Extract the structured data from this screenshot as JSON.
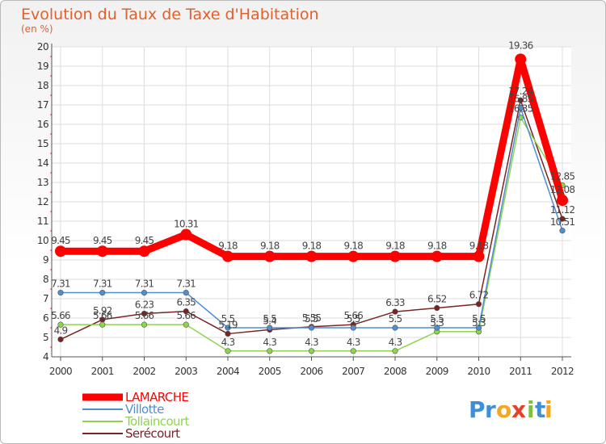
{
  "chart_data": {
    "type": "line",
    "title": "Evolution du Taux de Taxe d'Habitation",
    "subtitle": "(en %)",
    "x": [
      "2000",
      "2001",
      "2002",
      "2003",
      "2004",
      "2005",
      "2006",
      "2007",
      "2008",
      "2009",
      "2010",
      "2011",
      "2012"
    ],
    "yticks": [
      "4",
      "5",
      "6",
      "7",
      "8",
      "9",
      "10",
      "11",
      "12",
      "13",
      "14",
      "15",
      "16",
      "17",
      "18",
      "19",
      "20"
    ],
    "ylim": [
      4,
      20
    ],
    "grid": true,
    "legend_position": "bottom-left",
    "series": [
      {
        "name": "LAMARCHE",
        "color": "#ff0000",
        "values": [
          9.45,
          9.45,
          9.45,
          10.31,
          9.18,
          9.18,
          9.18,
          9.18,
          9.18,
          9.18,
          9.18,
          19.36,
          12.08
        ],
        "labels": [
          "9.45",
          "9.45",
          "9.45",
          "10.31",
          "9.18",
          "9.18",
          "9.18",
          "9.18",
          "9.18",
          "9.18",
          "9.18",
          "19.36",
          "12.08"
        ]
      },
      {
        "name": "Villotte",
        "color": "#4f8ecf",
        "values": [
          7.31,
          7.31,
          7.31,
          7.31,
          5.5,
          5.5,
          5.5,
          5.5,
          5.5,
          5.5,
          5.5,
          16.85,
          10.51
        ],
        "labels": [
          "7.31",
          "7.31",
          "7.31",
          "7.31",
          "5.5",
          "5.5",
          "5.5",
          "5.5",
          "5.5",
          "5.5",
          "5.5",
          "16.85",
          "10.51"
        ]
      },
      {
        "name": "Tollaincourt",
        "color": "#8fd44e",
        "values": [
          5.66,
          5.66,
          5.66,
          5.66,
          4.3,
          4.3,
          4.3,
          4.3,
          4.3,
          5.3,
          5.3,
          16.35,
          12.85
        ],
        "labels": [
          "5.66",
          "5.66",
          "5.66",
          "5.66",
          "4.3",
          "4.3",
          "4.3",
          "4.3",
          "4.3",
          "5.3",
          "5.3",
          "16.35",
          "12.85"
        ]
      },
      {
        "name": "Serécourt",
        "color": "#7a2323",
        "values": [
          4.9,
          5.92,
          6.23,
          6.35,
          5.19,
          5.4,
          5.55,
          5.66,
          6.33,
          6.52,
          6.72,
          17.24,
          11.12
        ],
        "labels": [
          "4.9",
          "5.92",
          "6.23",
          "6.35",
          "5.19",
          "5.4",
          "5.55",
          "5.66",
          "6.33",
          "6.52",
          "6.72",
          "17.24",
          "11.12"
        ]
      }
    ]
  },
  "logo": {
    "text": "Proxiti",
    "letters": [
      "P",
      "r",
      "o",
      "x",
      "i",
      "t",
      "i"
    ],
    "colors": [
      "#3c8fd8",
      "#3c8fd8",
      "#f5a623",
      "#e6402a",
      "#7fc043",
      "#3c8fd8",
      "#f5a623"
    ]
  }
}
